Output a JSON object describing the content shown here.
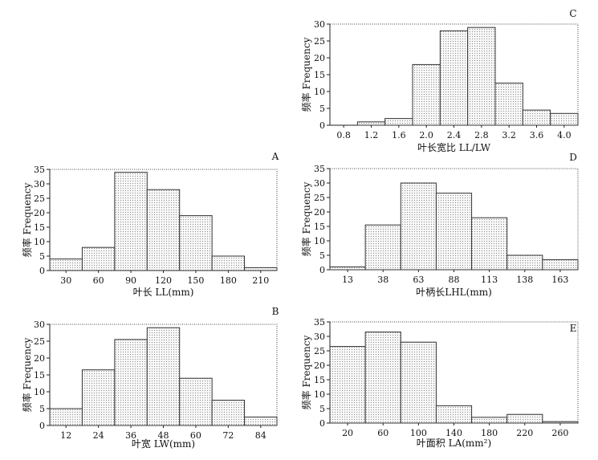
{
  "chart_data": [
    {
      "type": "bar",
      "panel": "A",
      "xlabel": "叶长 LL(mm)",
      "ylabel": "频率 Frequency",
      "x_ticks": [
        "30",
        "60",
        "90",
        "120",
        "150",
        "180",
        "210"
      ],
      "ylim": [
        0,
        35
      ],
      "y_ticks": [
        "0",
        "5",
        "10",
        "15",
        "20",
        "25",
        "30",
        "35"
      ],
      "values": [
        4,
        8,
        34,
        28,
        19,
        5,
        1
      ],
      "x_range": [
        15,
        225
      ],
      "bar_starts": [
        15,
        45,
        75,
        105,
        135,
        165,
        195
      ],
      "bar_width": 30
    },
    {
      "type": "bar",
      "panel": "B",
      "xlabel": "叶宽 LW(mm)",
      "ylabel": "频率 Frequency",
      "x_ticks": [
        "12",
        "24",
        "36",
        "48",
        "60",
        "72",
        "84"
      ],
      "ylim": [
        0,
        30
      ],
      "y_ticks": [
        "0",
        "5",
        "10",
        "15",
        "20",
        "25",
        "30"
      ],
      "values": [
        5,
        16.5,
        25.5,
        29,
        14,
        7.5,
        2.5
      ],
      "x_range": [
        6,
        90
      ],
      "bar_starts": [
        6,
        18,
        30,
        42,
        54,
        66,
        78
      ],
      "bar_width": 12
    },
    {
      "type": "bar",
      "panel": "C",
      "xlabel": "叶长宽比 LL/LW",
      "ylabel": "频率 Frequency",
      "x_ticks": [
        "0.8",
        "1.2",
        "1.6",
        "2.0",
        "2.4",
        "2.8",
        "3.2",
        "3.6",
        "4.0"
      ],
      "ylim": [
        0,
        30
      ],
      "y_ticks": [
        "0",
        "5",
        "10",
        "15",
        "20",
        "25",
        "30"
      ],
      "values": [
        0,
        1,
        2,
        18,
        28,
        29,
        12.5,
        4.5,
        3.5
      ],
      "x_range": [
        0.6,
        4.2
      ],
      "bar_starts": [
        0.6,
        1.0,
        1.4,
        1.8,
        2.2,
        2.6,
        3.0,
        3.4,
        3.8
      ],
      "bar_width": 0.4
    },
    {
      "type": "bar",
      "panel": "D",
      "xlabel": "叶柄长LHL(mm)",
      "ylabel": "频率 Frequency",
      "x_ticks": [
        "13",
        "38",
        "63",
        "88",
        "113",
        "138",
        "163"
      ],
      "ylim": [
        0,
        35
      ],
      "y_ticks": [
        "0",
        "5",
        "10",
        "15",
        "20",
        "25",
        "30",
        "35"
      ],
      "values": [
        1,
        15.5,
        30,
        26.5,
        18,
        5,
        3.5
      ],
      "x_range": [
        0.5,
        175.5
      ],
      "bar_starts": [
        0.5,
        25.5,
        50.5,
        75.5,
        100.5,
        125.5,
        150.5
      ],
      "bar_width": 25
    },
    {
      "type": "bar",
      "panel": "E",
      "xlabel": "叶面积 LA(mm²)",
      "ylabel": "频率 Frequency",
      "x_ticks": [
        "20",
        "60",
        "100",
        "140",
        "180",
        "220",
        "260"
      ],
      "ylim": [
        0,
        35
      ],
      "y_ticks": [
        "0",
        "5",
        "10",
        "15",
        "20",
        "25",
        "30",
        "35"
      ],
      "values": [
        26.5,
        31.5,
        28,
        6,
        2,
        3,
        0.5
      ],
      "x_range": [
        0,
        280
      ],
      "bar_starts": [
        0,
        40,
        80,
        120,
        160,
        200,
        240
      ],
      "bar_width": 40
    }
  ]
}
